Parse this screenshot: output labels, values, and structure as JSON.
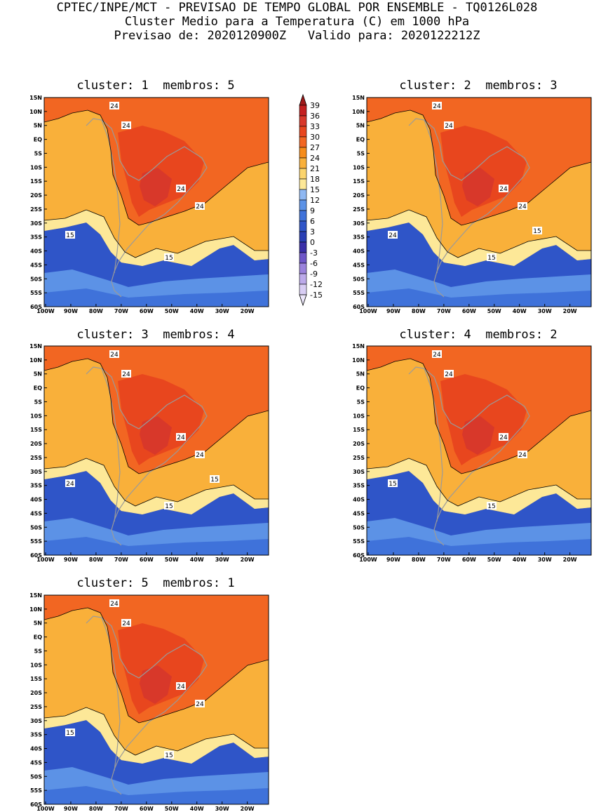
{
  "header": {
    "line1": "CPTEC/INPE/MCT - PREVISAO DE TEMPO GLOBAL POR ENSEMBLE - TQ0126L028",
    "line2": "Cluster Medio para a Temperatura (C) em 1000 hPa",
    "line3": "Previsao de: 2020120900Z   Valido para: 2020122212Z"
  },
  "lat_ticks": [
    "15N",
    "10N",
    "5N",
    "EQ",
    "5S",
    "10S",
    "15S",
    "20S",
    "25S",
    "30S",
    "35S",
    "40S",
    "45S",
    "50S",
    "55S",
    "60S"
  ],
  "lon_ticks": [
    "100W",
    "90W",
    "80W",
    "70W",
    "60W",
    "50W",
    "40W",
    "30W",
    "20W"
  ],
  "panels": [
    {
      "title": "cluster: 1  membros: 5",
      "contour_labels": [
        "24",
        "24",
        "24",
        "24",
        "15",
        "15"
      ]
    },
    {
      "title": "cluster: 2  membros: 3",
      "contour_labels": [
        "24",
        "24",
        "24",
        "24",
        "24",
        "15",
        "15"
      ]
    },
    {
      "title": "cluster: 3  membros: 4",
      "contour_labels": [
        "24",
        "24",
        "24",
        "24",
        "24",
        "15",
        "15"
      ]
    },
    {
      "title": "cluster: 4  membros: 2",
      "contour_labels": [
        "24",
        "24",
        "24",
        "24",
        "15",
        "15"
      ]
    },
    {
      "title": "cluster: 5  membros: 1",
      "contour_labels": [
        "24",
        "24",
        "24",
        "24",
        "15",
        "15"
      ]
    }
  ],
  "colorbar": {
    "labels": [
      "39",
      "36",
      "33",
      "30",
      "27",
      "24",
      "21",
      "18",
      "15",
      "12",
      "9",
      "6",
      "3",
      "0",
      "-3",
      "-6",
      "-9",
      "-12",
      "-15"
    ],
    "colors": [
      "#a01a1a",
      "#c42020",
      "#d8382a",
      "#e8461e",
      "#f26622",
      "#f68c1a",
      "#f9b03a",
      "#fbd46c",
      "#fde898",
      "#8fb8f2",
      "#5c92e6",
      "#3f72da",
      "#2f55c8",
      "#2a3fb4",
      "#3a2fa8",
      "#6e56c8",
      "#9a82dc",
      "#bcaaea",
      "#d8cdf4",
      "#ece6fa"
    ]
  },
  "colors": {
    "ocean_warm": "#f26622",
    "land_hot": "#d8382a",
    "coast": "#9a9a9a"
  }
}
